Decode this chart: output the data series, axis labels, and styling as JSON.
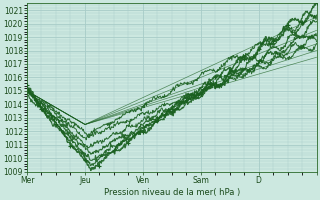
{
  "background_color": "#cce8e0",
  "grid_color": "#a8ccc8",
  "line_color": "#1a6020",
  "line_color_light": "#2d8040",
  "ylabel": "Pression niveau de la mer( hPa )",
  "ylim": [
    1009,
    1021.5
  ],
  "yticks": [
    1009,
    1010,
    1011,
    1012,
    1013,
    1014,
    1015,
    1016,
    1017,
    1018,
    1019,
    1020,
    1021
  ],
  "xlim": [
    0,
    100
  ],
  "xtick_positions": [
    0,
    20,
    40,
    60,
    80,
    100
  ],
  "xtick_labels": [
    "Mer",
    "Jeu",
    "Ven",
    "Sam",
    "D",
    ""
  ],
  "figsize": [
    3.2,
    2.0
  ],
  "dpi": 100
}
